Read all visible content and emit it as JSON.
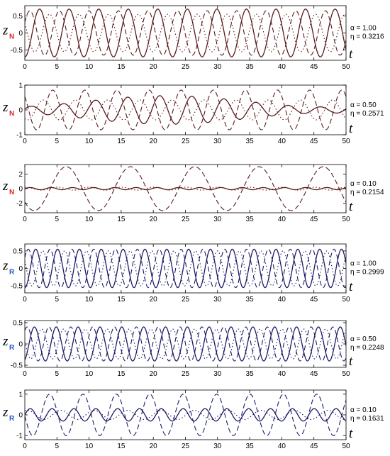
{
  "chart_data": [
    {
      "type": "line",
      "ylabel_main": "z",
      "ylabel_sub": "N",
      "sub_color": "#e02020",
      "line_color": "#5a1a1a",
      "xlabel": "t",
      "xlim": [
        0,
        50
      ],
      "ylim": [
        -0.8,
        0.8
      ],
      "xticks": [
        0,
        5,
        10,
        15,
        20,
        25,
        30,
        35,
        40,
        45,
        50
      ],
      "yticks": [
        -0.5,
        0,
        0.5
      ],
      "ytick_labels": [
        "-0.5",
        "0",
        "0.5"
      ],
      "params": [
        "α = 1.00",
        "η = 0.3216"
      ],
      "series": [
        {
          "style": "solid",
          "amp": 0.7,
          "period": 4.6,
          "phase": -1.5708
        },
        {
          "style": "dashed",
          "amp": 0.65,
          "period": 4.6,
          "phase": 0.5
        },
        {
          "style": "dotted",
          "amp": 0.55,
          "period": 4.6,
          "phase": 2.6
        }
      ]
    },
    {
      "type": "line",
      "ylabel_main": "z",
      "ylabel_sub": "N",
      "sub_color": "#e02020",
      "line_color": "#5a1a1a",
      "xlabel": "t",
      "xlim": [
        0,
        50
      ],
      "ylim": [
        -1,
        1
      ],
      "xticks": [
        0,
        5,
        10,
        15,
        20,
        25,
        30,
        35,
        40,
        45,
        50
      ],
      "yticks": [
        -1,
        0,
        1
      ],
      "ytick_labels": [
        "-1",
        "0",
        "1"
      ],
      "params": [
        "α = 0.50",
        "η = 0.2571"
      ],
      "series": [
        {
          "style": "solid",
          "amp": 0.35,
          "period": 5.0,
          "phase": 0.3,
          "amod": 0.65,
          "mod_period": 50,
          "mod_phase": -1.2
        },
        {
          "style": "dashed",
          "amp": 0.8,
          "period": 5.0,
          "phase": 2.4
        },
        {
          "style": "dotted",
          "amp": 0.4,
          "period": 5.0,
          "phase": 4.2
        }
      ]
    },
    {
      "type": "line",
      "ylabel_main": "z",
      "ylabel_sub": "N",
      "sub_color": "#e02020",
      "line_color": "#5a1a1a",
      "xlabel": "t",
      "xlim": [
        0,
        50
      ],
      "ylim": [
        -3.3,
        3.3
      ],
      "xticks": [
        0,
        5,
        10,
        15,
        20,
        25,
        30,
        35,
        40,
        45,
        50
      ],
      "yticks": [
        -2,
        0,
        2
      ],
      "ytick_labels": [
        "-2",
        "0",
        "2"
      ],
      "params": [
        "α = 0.10",
        "η = 0.2154"
      ],
      "series": [
        {
          "style": "solid",
          "amp": 0.15,
          "period": 3.3,
          "phase": 0.0
        },
        {
          "style": "dashed",
          "amp": 3.0,
          "period": 10.0,
          "phase": 3.8
        },
        {
          "style": "dotted",
          "amp": 0.2,
          "period": 5.0,
          "phase": 1.5
        }
      ]
    },
    {
      "type": "line",
      "ylabel_main": "z",
      "ylabel_sub": "R",
      "sub_color": "#2050d0",
      "line_color": "#1a1a66",
      "xlabel": "t",
      "xlim": [
        0,
        50
      ],
      "ylim": [
        -0.7,
        0.7
      ],
      "xticks": [
        0,
        5,
        10,
        15,
        20,
        25,
        30,
        35,
        40,
        45,
        50
      ],
      "yticks": [
        -0.5,
        0,
        0.5
      ],
      "ytick_labels": [
        "-0.5",
        "0",
        "0.5"
      ],
      "params": [
        "α = 1.00",
        "η = 0.2999"
      ],
      "series": [
        {
          "style": "solid",
          "amp": 0.55,
          "period": 3.4,
          "phase": -1.5708
        },
        {
          "style": "dashed",
          "amp": 0.55,
          "period": 3.4,
          "phase": 0.6
        },
        {
          "style": "dotted",
          "amp": 0.5,
          "period": 3.4,
          "phase": 2.7
        }
      ]
    },
    {
      "type": "line",
      "ylabel_main": "z",
      "ylabel_sub": "R",
      "sub_color": "#2050d0",
      "line_color": "#1a1a66",
      "xlabel": "t",
      "xlim": [
        0,
        50
      ],
      "ylim": [
        -0.55,
        0.55
      ],
      "xticks": [
        0,
        5,
        10,
        15,
        20,
        25,
        30,
        35,
        40,
        45,
        50
      ],
      "yticks": [
        -0.5,
        0,
        0.5
      ],
      "ytick_labels": [
        "-0.5",
        "0",
        "0.5"
      ],
      "params": [
        "α = 0.50",
        "η = 0.2248"
      ],
      "series": [
        {
          "style": "solid",
          "amp": 0.4,
          "period": 3.4,
          "phase": -1.2
        },
        {
          "style": "dashed",
          "amp": 0.4,
          "period": 3.4,
          "phase": 0.9
        },
        {
          "style": "dotted",
          "amp": 0.35,
          "period": 3.4,
          "phase": 3.0
        }
      ]
    },
    {
      "type": "line",
      "ylabel_main": "z",
      "ylabel_sub": "R",
      "sub_color": "#2050d0",
      "line_color": "#1a1a66",
      "xlabel": "t",
      "xlim": [
        0,
        50
      ],
      "ylim": [
        -1.2,
        1.2
      ],
      "xticks": [
        0,
        5,
        10,
        15,
        20,
        25,
        30,
        35,
        40,
        45,
        50
      ],
      "yticks": [
        -1,
        0,
        1
      ],
      "ytick_labels": [
        "-1",
        "0",
        "1"
      ],
      "params": [
        "α = 0.10",
        "η = 0.1631"
      ],
      "series": [
        {
          "style": "solid",
          "amp": 0.3,
          "period": 3.4,
          "phase": 0.0
        },
        {
          "style": "dashed",
          "amp": 1.0,
          "period": 5.2,
          "phase": 3.2
        },
        {
          "style": "dotted",
          "amp": 0.22,
          "period": 5.2,
          "phase": 1.1
        }
      ]
    }
  ]
}
